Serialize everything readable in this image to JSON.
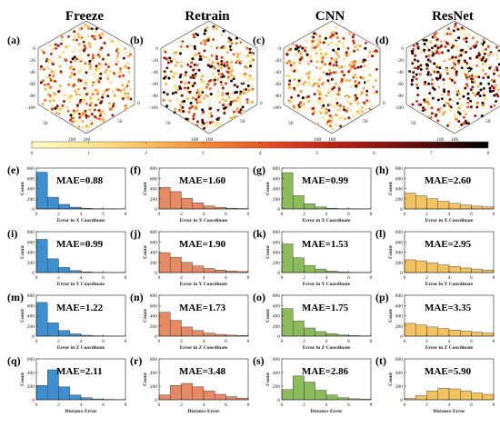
{
  "columns": [
    "Freeze",
    "Retrain",
    "CNN",
    "ResNet"
  ],
  "column_colors": [
    "#3f8fce",
    "#e58a63",
    "#8cbb5c",
    "#f2c360"
  ],
  "scatter_panels": [
    {
      "label": "(a)",
      "dark_share": 0.07
    },
    {
      "label": "(b)",
      "dark_share": 0.22
    },
    {
      "label": "(c)",
      "dark_share": 0.1
    },
    {
      "label": "(d)",
      "dark_share": 0.4
    }
  ],
  "scatter_axes": {
    "z_ticks": [
      "0",
      "-20",
      "-40",
      "-60",
      "-80",
      "-100"
    ],
    "x_ticks": [
      "50",
      "100"
    ],
    "y_ticks": [
      "50",
      "100"
    ],
    "corner_ticks": [
      "0",
      "0"
    ]
  },
  "colorbar": {
    "ticks": [
      "0",
      "1",
      "2",
      "3",
      "4",
      "5",
      "6",
      "7",
      "8"
    ],
    "min": 0,
    "max": 8,
    "stops": [
      "#ffffc4",
      "#fde38a",
      "#f9b24e",
      "#f2742b",
      "#d83a1c",
      "#a81812",
      "#5c0c0a",
      "#000000"
    ]
  },
  "chart_data": {
    "type": "bar",
    "x_ticks": [
      "0",
      "2",
      "4",
      "6",
      "8"
    ],
    "xlim": [
      0,
      8
    ],
    "ylabel": "Count",
    "bin_edges": [
      0,
      1,
      2,
      3,
      4,
      5,
      6,
      7,
      8
    ],
    "rows": [
      {
        "xlabel": "Error in X Coordinate",
        "panels": [
          {
            "label": "(e)",
            "mae": "MAE=0.88",
            "ylim": [
              0,
              800
            ],
            "y_ticks": [
              "0",
              "200",
              "400",
              "600",
              "800"
            ],
            "values": [
              720,
              230,
              90,
              35,
              15,
              6,
              3,
              2
            ]
          },
          {
            "label": "(f)",
            "mae": "MAE=1.60",
            "ylim": [
              0,
              800
            ],
            "y_ticks": [
              "0",
              "200",
              "400",
              "600",
              "800"
            ],
            "values": [
              420,
              340,
              210,
              120,
              60,
              30,
              15,
              8
            ]
          },
          {
            "label": "(g)",
            "mae": "MAE=0.99",
            "ylim": [
              0,
              800
            ],
            "y_ticks": [
              "0",
              "200",
              "400",
              "600",
              "800"
            ],
            "values": [
              710,
              260,
              100,
              40,
              15,
              6,
              3,
              2
            ]
          },
          {
            "label": "(h)",
            "mae": "MAE=2.60",
            "ylim": [
              0,
              800
            ],
            "y_ticks": [
              "0",
              "200",
              "400",
              "600",
              "800"
            ],
            "values": [
              310,
              260,
              200,
              150,
              110,
              80,
              55,
              40
            ]
          }
        ]
      },
      {
        "xlabel": "Error in Y Coordinate",
        "panels": [
          {
            "label": "(i)",
            "mae": "MAE=0.99",
            "ylim": [
              0,
              800
            ],
            "y_ticks": [
              "0",
              "200",
              "400",
              "600",
              "800"
            ],
            "values": [
              650,
              270,
              100,
              40,
              15,
              6,
              3,
              2
            ]
          },
          {
            "label": "(j)",
            "mae": "MAE=1.90",
            "ylim": [
              0,
              800
            ],
            "y_ticks": [
              "0",
              "200",
              "400",
              "600",
              "800"
            ],
            "values": [
              390,
              300,
              200,
              130,
              80,
              50,
              30,
              20
            ]
          },
          {
            "label": "(k)",
            "mae": "MAE=1.53",
            "ylim": [
              0,
              800
            ],
            "y_ticks": [
              "0",
              "200",
              "400",
              "600",
              "800"
            ],
            "values": [
              560,
              290,
              140,
              70,
              30,
              12,
              6,
              3
            ]
          },
          {
            "label": "(l)",
            "mae": "MAE=2.95",
            "ylim": [
              0,
              800
            ],
            "y_ticks": [
              "0",
              "200",
              "400",
              "600",
              "800"
            ],
            "values": [
              250,
              230,
              190,
              150,
              120,
              90,
              70,
              50
            ]
          }
        ]
      },
      {
        "xlabel": "Error in Z Coordinate",
        "panels": [
          {
            "label": "(m)",
            "mae": "MAE=1.22",
            "ylim": [
              0,
              800
            ],
            "y_ticks": [
              "0",
              "200",
              "400",
              "600",
              "800"
            ],
            "values": [
              660,
              260,
              110,
              45,
              18,
              8,
              4,
              2
            ]
          },
          {
            "label": "(n)",
            "mae": "MAE=1.73",
            "ylim": [
              0,
              800
            ],
            "y_ticks": [
              "0",
              "200",
              "400",
              "600",
              "800"
            ],
            "values": [
              470,
              310,
              180,
              110,
              60,
              35,
              20,
              12
            ]
          },
          {
            "label": "(o)",
            "mae": "MAE=1.75",
            "ylim": [
              0,
              800
            ],
            "y_ticks": [
              "0",
              "200",
              "400",
              "600",
              "800"
            ],
            "values": [
              540,
              300,
              160,
              90,
              50,
              25,
              12,
              6
            ]
          },
          {
            "label": "(p)",
            "mae": "MAE=3.35",
            "ylim": [
              0,
              800
            ],
            "y_ticks": [
              "0",
              "200",
              "400",
              "600",
              "800"
            ],
            "values": [
              250,
              220,
              180,
              150,
              120,
              100,
              80,
              60
            ]
          }
        ]
      },
      {
        "xlabel": "Distance Error",
        "panels": [
          {
            "label": "(q)",
            "mae": "MAE=2.11",
            "ylim": [
              0,
              600
            ],
            "y_ticks": [
              "0",
              "200",
              "400",
              "600"
            ],
            "values": [
              210,
              440,
              190,
              70,
              30,
              12,
              6,
              3
            ]
          },
          {
            "label": "(r)",
            "mae": "MAE=3.48",
            "ylim": [
              0,
              600
            ],
            "y_ticks": [
              "0",
              "200",
              "400",
              "600"
            ],
            "values": [
              70,
              210,
              240,
              190,
              130,
              80,
              45,
              25
            ]
          },
          {
            "label": "(s)",
            "mae": "MAE=2.86",
            "ylim": [
              0,
              600
            ],
            "y_ticks": [
              "0",
              "200",
              "400",
              "600"
            ],
            "values": [
              150,
              350,
              260,
              140,
              70,
              30,
              15,
              8
            ]
          },
          {
            "label": "(t)",
            "mae": "MAE=5.90",
            "ylim": [
              0,
              600
            ],
            "y_ticks": [
              "0",
              "200",
              "400",
              "600"
            ],
            "values": [
              20,
              60,
              130,
              170,
              160,
              130,
              100,
              80
            ]
          }
        ]
      }
    ]
  }
}
